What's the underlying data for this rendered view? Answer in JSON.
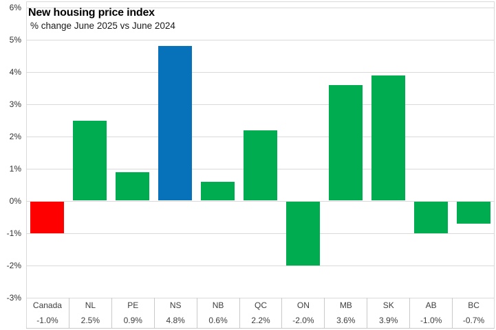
{
  "chart_data": {
    "type": "bar",
    "title": "New housing price index",
    "subtitle": "% change June 2025 vs June 2024",
    "categories": [
      "Canada",
      "NL",
      "PE",
      "NS",
      "NB",
      "QC",
      "ON",
      "MB",
      "SK",
      "AB",
      "BC"
    ],
    "values": [
      -1.0,
      2.5,
      0.9,
      4.8,
      0.6,
      2.2,
      -2.0,
      3.6,
      3.9,
      -1.0,
      -0.7
    ],
    "value_labels": [
      "-1.0%",
      "2.5%",
      "0.9%",
      "4.8%",
      "0.6%",
      "2.2%",
      "-2.0%",
      "3.6%",
      "3.9%",
      "-1.0%",
      "-0.7%"
    ],
    "bar_colors": [
      "#FF0000",
      "#00AC50",
      "#00AC50",
      "#0771BA",
      "#00AC50",
      "#00AC50",
      "#00AC50",
      "#00AC50",
      "#00AC50",
      "#00AC50",
      "#00AC50"
    ],
    "colors": {
      "canada_red": "#FF0000",
      "province_green": "#00AC50",
      "highlight_blue": "#0771BA",
      "gridline_gray": "#D9D9D9",
      "table_border_gray": "#C9C9C9"
    },
    "ylim": [
      -3,
      6
    ],
    "ytick_step": 1,
    "ytick_labels": [
      "6%",
      "5%",
      "4%",
      "3%",
      "2%",
      "1%",
      "0%",
      "-1%",
      "-2%",
      "-3%"
    ],
    "grid": "horizontal",
    "legend": "none",
    "x_axis_style": "data table below axis with category labels and values"
  }
}
